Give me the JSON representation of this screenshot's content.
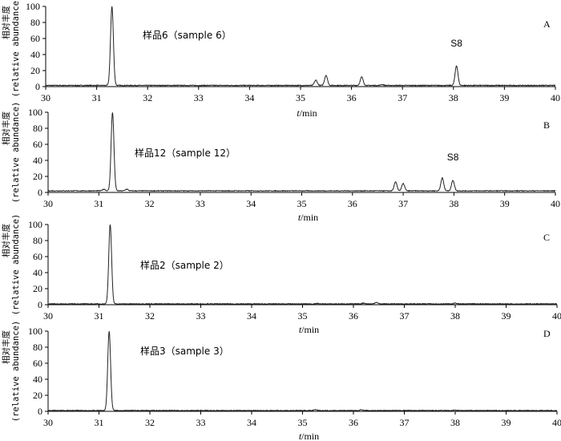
{
  "chart_data": [
    {
      "type": "line",
      "panel": "A",
      "sample_label": "样品6（sample 6）",
      "ylabel_cn": "相对丰度",
      "ylabel_en": "(relative abundance)",
      "xlabel_italic": "t",
      "xlabel_unit": "/min",
      "xlim": [
        30,
        40
      ],
      "ylim": [
        0,
        100
      ],
      "xticks": [
        30,
        31,
        32,
        33,
        34,
        35,
        36,
        37,
        38,
        39,
        40
      ],
      "yticks": [
        0,
        20,
        40,
        60,
        80,
        100
      ],
      "baseline": 1.5,
      "peaks": [
        {
          "x": 31.3,
          "y": 100
        },
        {
          "x": 35.3,
          "y": 8
        },
        {
          "x": 35.5,
          "y": 14
        },
        {
          "x": 36.2,
          "y": 12
        },
        {
          "x": 36.6,
          "y": 2.5
        },
        {
          "x": 38.06,
          "y": 26,
          "label": "S8"
        }
      ]
    },
    {
      "type": "line",
      "panel": "B",
      "sample_label": "样品12（sample 12）",
      "ylabel_cn": "相对丰度",
      "ylabel_en": "(relative abundance)",
      "xlabel_italic": "t",
      "xlabel_unit": "/min",
      "xlim": [
        30,
        40
      ],
      "ylim": [
        0,
        100
      ],
      "xticks": [
        30,
        31,
        32,
        33,
        34,
        35,
        36,
        37,
        38,
        39,
        40
      ],
      "yticks": [
        0,
        20,
        40,
        60,
        80,
        100
      ],
      "baseline": 2,
      "peaks": [
        {
          "x": 31.1,
          "y": 4
        },
        {
          "x": 31.27,
          "y": 100
        },
        {
          "x": 31.55,
          "y": 4
        },
        {
          "x": 36.85,
          "y": 13
        },
        {
          "x": 37.0,
          "y": 11
        },
        {
          "x": 37.77,
          "y": 18
        },
        {
          "x": 37.98,
          "y": 15,
          "label": "S8"
        }
      ]
    },
    {
      "type": "line",
      "panel": "C",
      "sample_label": "样品2（sample 2）",
      "ylabel_cn": "相对丰度",
      "ylabel_en": "(relative abundance)",
      "xlabel_italic": "t",
      "xlabel_unit": "/min",
      "xlim": [
        30,
        40
      ],
      "ylim": [
        0,
        100
      ],
      "xticks": [
        30,
        31,
        32,
        33,
        34,
        35,
        36,
        37,
        38,
        39,
        40
      ],
      "yticks": [
        0,
        20,
        40,
        60,
        80,
        100
      ],
      "baseline": 1,
      "peaks": [
        {
          "x": 31.22,
          "y": 100
        },
        {
          "x": 35.3,
          "y": 1.5
        },
        {
          "x": 36.2,
          "y": 2
        },
        {
          "x": 36.45,
          "y": 3
        },
        {
          "x": 37.5,
          "y": 1.5
        },
        {
          "x": 38.0,
          "y": 2
        }
      ]
    },
    {
      "type": "line",
      "panel": "D",
      "sample_label": "样品3（sample 3）",
      "ylabel_cn": "相对丰度",
      "ylabel_en": "(relative abundance)",
      "xlabel_italic": "t",
      "xlabel_unit": "/min",
      "xlim": [
        30,
        40
      ],
      "ylim": [
        0,
        100
      ],
      "xticks": [
        30,
        31,
        32,
        33,
        34,
        35,
        36,
        37,
        38,
        39,
        40
      ],
      "yticks": [
        0,
        20,
        40,
        60,
        80,
        100
      ],
      "baseline": 1,
      "peaks": [
        {
          "x": 31.2,
          "y": 100
        },
        {
          "x": 35.25,
          "y": 2
        },
        {
          "x": 36.15,
          "y": 2
        },
        {
          "x": 38.0,
          "y": 1.5
        }
      ]
    }
  ]
}
